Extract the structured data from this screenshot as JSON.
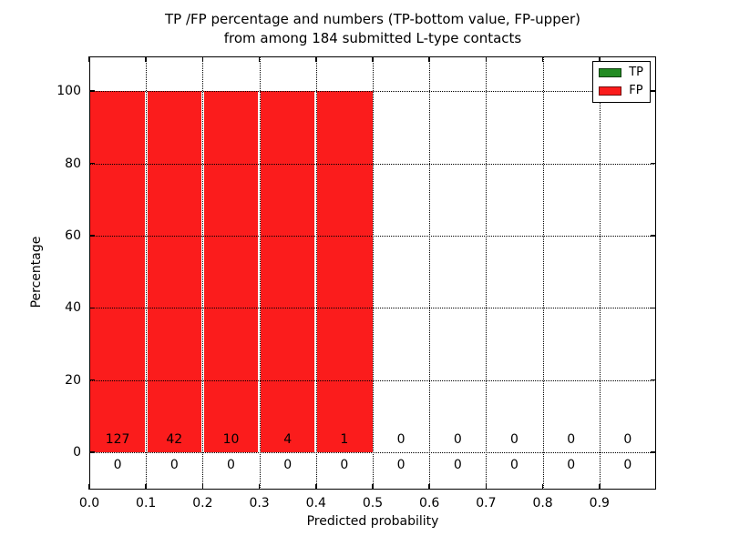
{
  "title": {
    "line1": "TP /FP percentage and numbers (TP-bottom value, FP-upper)",
    "line2": "from among 184 submitted L-type contacts"
  },
  "chart_data": {
    "type": "bar",
    "title": "TP /FP percentage and numbers (TP-bottom value, FP-upper)\nfrom among 184 submitted L-type contacts",
    "xlabel": "Predicted probability",
    "ylabel": "Percentage",
    "xlim": [
      0,
      1.0
    ],
    "ylim": [
      -10.3,
      109.6
    ],
    "x_tick_values": [
      0,
      0.1,
      0.2,
      0.3,
      0.4,
      0.5,
      0.6,
      0.7,
      0.8,
      0.9
    ],
    "x_tick_labels": [
      "0.0",
      "0.1",
      "0.2",
      "0.3",
      "0.4",
      "0.5",
      "0.6",
      "0.7",
      "0.8",
      "0.9"
    ],
    "y_tick_values": [
      0,
      20,
      40,
      60,
      80,
      100
    ],
    "grid": true,
    "grid_linestyle": "dotted",
    "legend_position": "upper right",
    "bin_width": 0.1,
    "bin_starts": [
      0,
      0.1,
      0.2,
      0.3,
      0.4,
      0.5,
      0.6,
      0.7,
      0.8,
      0.9
    ],
    "total_submitted": 184,
    "series": [
      {
        "name": "TP",
        "color": "#228b22",
        "counts_row": "bottom",
        "percentages": [
          0,
          0,
          0,
          0,
          0,
          0,
          0,
          0,
          0,
          0
        ],
        "counts": [
          0,
          0,
          0,
          0,
          0,
          0,
          0,
          0,
          0,
          0
        ]
      },
      {
        "name": "FP",
        "color": "#fb1c1c",
        "counts_row": "upper",
        "percentages": [
          100,
          100,
          100,
          100,
          100,
          0,
          0,
          0,
          0,
          0
        ],
        "counts": [
          127,
          42,
          10,
          4,
          1,
          0,
          0,
          0,
          0,
          0
        ]
      }
    ]
  },
  "colors": {
    "tp_green": "#228b22",
    "fp_red": "#fb1c1c",
    "grid": "#000000",
    "background": "#ffffff"
  }
}
